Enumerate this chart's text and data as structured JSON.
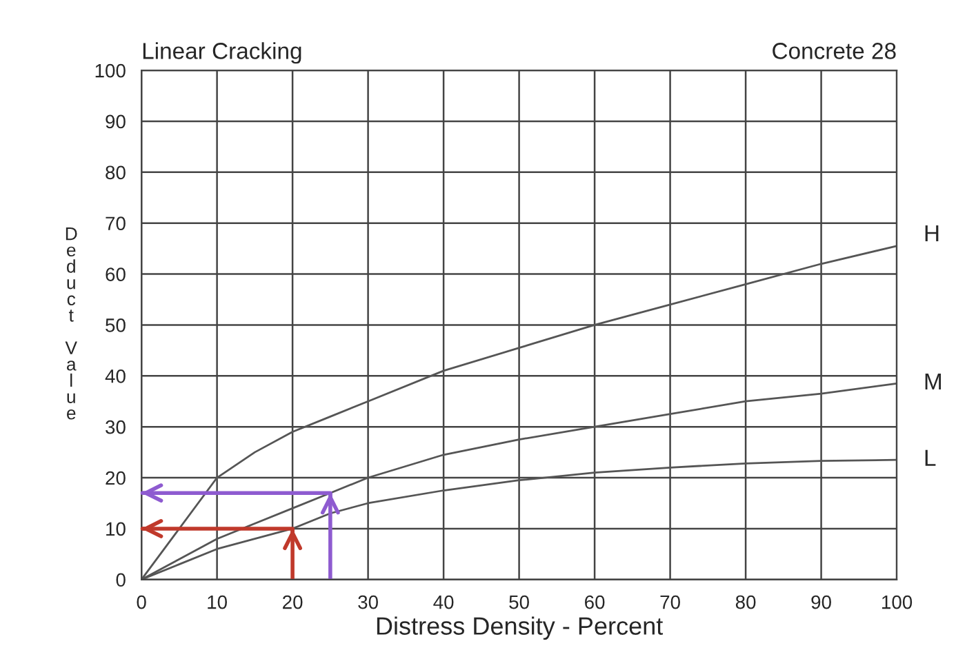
{
  "chart_data": {
    "type": "line",
    "title": "Linear Cracking",
    "subtitle": "Concrete 28",
    "xlabel": "Distress Density - Percent",
    "ylabel": "Deduct Value",
    "x": [
      0,
      5,
      10,
      15,
      20,
      25,
      30,
      40,
      50,
      60,
      70,
      80,
      90,
      100
    ],
    "series": [
      {
        "name": "H",
        "color": "#555555",
        "values": [
          0,
          10,
          20,
          25,
          29,
          32,
          35,
          41,
          45.5,
          50,
          54,
          58,
          62,
          65.5
        ]
      },
      {
        "name": "M",
        "color": "#555555",
        "values": [
          0,
          4,
          8,
          11,
          14,
          17,
          20,
          24.5,
          27.5,
          30,
          32.5,
          35,
          36.5,
          38.5
        ]
      },
      {
        "name": "L",
        "color": "#555555",
        "values": [
          0,
          3,
          6,
          8,
          10,
          13,
          15,
          17.5,
          19.5,
          21,
          22,
          22.8,
          23.3,
          23.5
        ]
      },
      {
        "color": "#c0392b",
        "x": [
          20,
          20,
          0
        ],
        "values": [
          0,
          10,
          10
        ]
      },
      {
        "color": "#8e5bd0",
        "x": [
          25,
          25,
          0
        ],
        "values": [
          0,
          17,
          17
        ]
      }
    ],
    "xlim": [
      0,
      100
    ],
    "ylim": [
      0,
      100
    ],
    "xticks": [
      0,
      10,
      20,
      30,
      40,
      50,
      60,
      70,
      80,
      90,
      100
    ],
    "yticks": [
      0,
      10,
      20,
      30,
      40,
      50,
      60,
      70,
      80,
      90,
      100
    ],
    "grid": true,
    "legend": false,
    "marker": "none",
    "line_style": "solid"
  }
}
